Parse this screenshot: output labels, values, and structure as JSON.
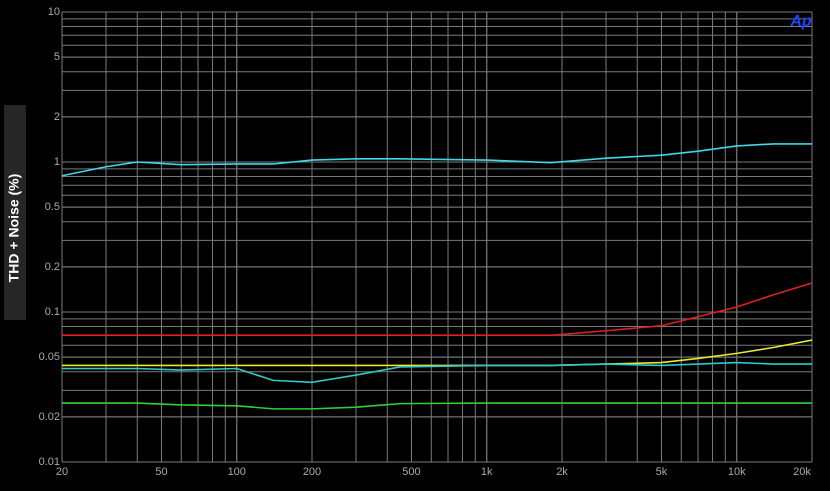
{
  "chart_data": {
    "type": "line",
    "ylabel": "THD + Noise (%)",
    "logo": "Ap",
    "xlog": true,
    "ylog": true,
    "grid": true,
    "xlim": [
      20,
      20000
    ],
    "ylim": [
      0.01,
      10
    ],
    "xticks": [
      20,
      50,
      100,
      200,
      500,
      {
        "value": 1000,
        "label": "1k"
      },
      {
        "value": 2000,
        "label": "2k"
      },
      {
        "value": 5000,
        "label": "5k"
      },
      {
        "value": 10000,
        "label": "10k"
      },
      {
        "value": 20000,
        "label": "20k"
      }
    ],
    "yticks": [
      10,
      5,
      2,
      1,
      0.5,
      0.2,
      0.1,
      0.05,
      0.02,
      0.01
    ],
    "x": [
      20,
      30,
      40,
      60,
      100,
      140,
      200,
      300,
      450,
      1000,
      1800,
      3000,
      5000,
      7000,
      10000,
      14000,
      20000
    ],
    "series": [
      {
        "color": "#3fd8e6",
        "values": [
          0.81,
          0.93,
          1.0,
          0.96,
          0.97,
          0.97,
          1.03,
          1.05,
          1.05,
          1.03,
          0.99,
          1.06,
          1.11,
          1.18,
          1.28,
          1.32,
          1.32
        ]
      },
      {
        "color": "#e02020",
        "values": [
          0.07,
          0.07,
          0.07,
          0.07,
          0.07,
          0.07,
          0.07,
          0.07,
          0.07,
          0.07,
          0.07,
          0.075,
          0.081,
          0.093,
          0.108,
          0.13,
          0.156
        ]
      },
      {
        "color": "#e8e830",
        "values": [
          0.044,
          0.044,
          0.044,
          0.044,
          0.044,
          0.044,
          0.044,
          0.044,
          0.044,
          0.044,
          0.044,
          0.045,
          0.046,
          0.049,
          0.053,
          0.058,
          0.065
        ]
      },
      {
        "color": "#30c8c8",
        "values": [
          0.042,
          0.042,
          0.042,
          0.041,
          0.042,
          0.035,
          0.034,
          0.038,
          0.043,
          0.044,
          0.044,
          0.045,
          0.044,
          0.045,
          0.046,
          0.045,
          0.045
        ]
      },
      {
        "color": "#30d030",
        "values": [
          0.0247,
          0.0247,
          0.0247,
          0.024,
          0.0237,
          0.0226,
          0.0226,
          0.0232,
          0.0245,
          0.0247,
          0.0247,
          0.0247,
          0.0247,
          0.0247,
          0.0247,
          0.0247,
          0.0247
        ]
      }
    ]
  }
}
